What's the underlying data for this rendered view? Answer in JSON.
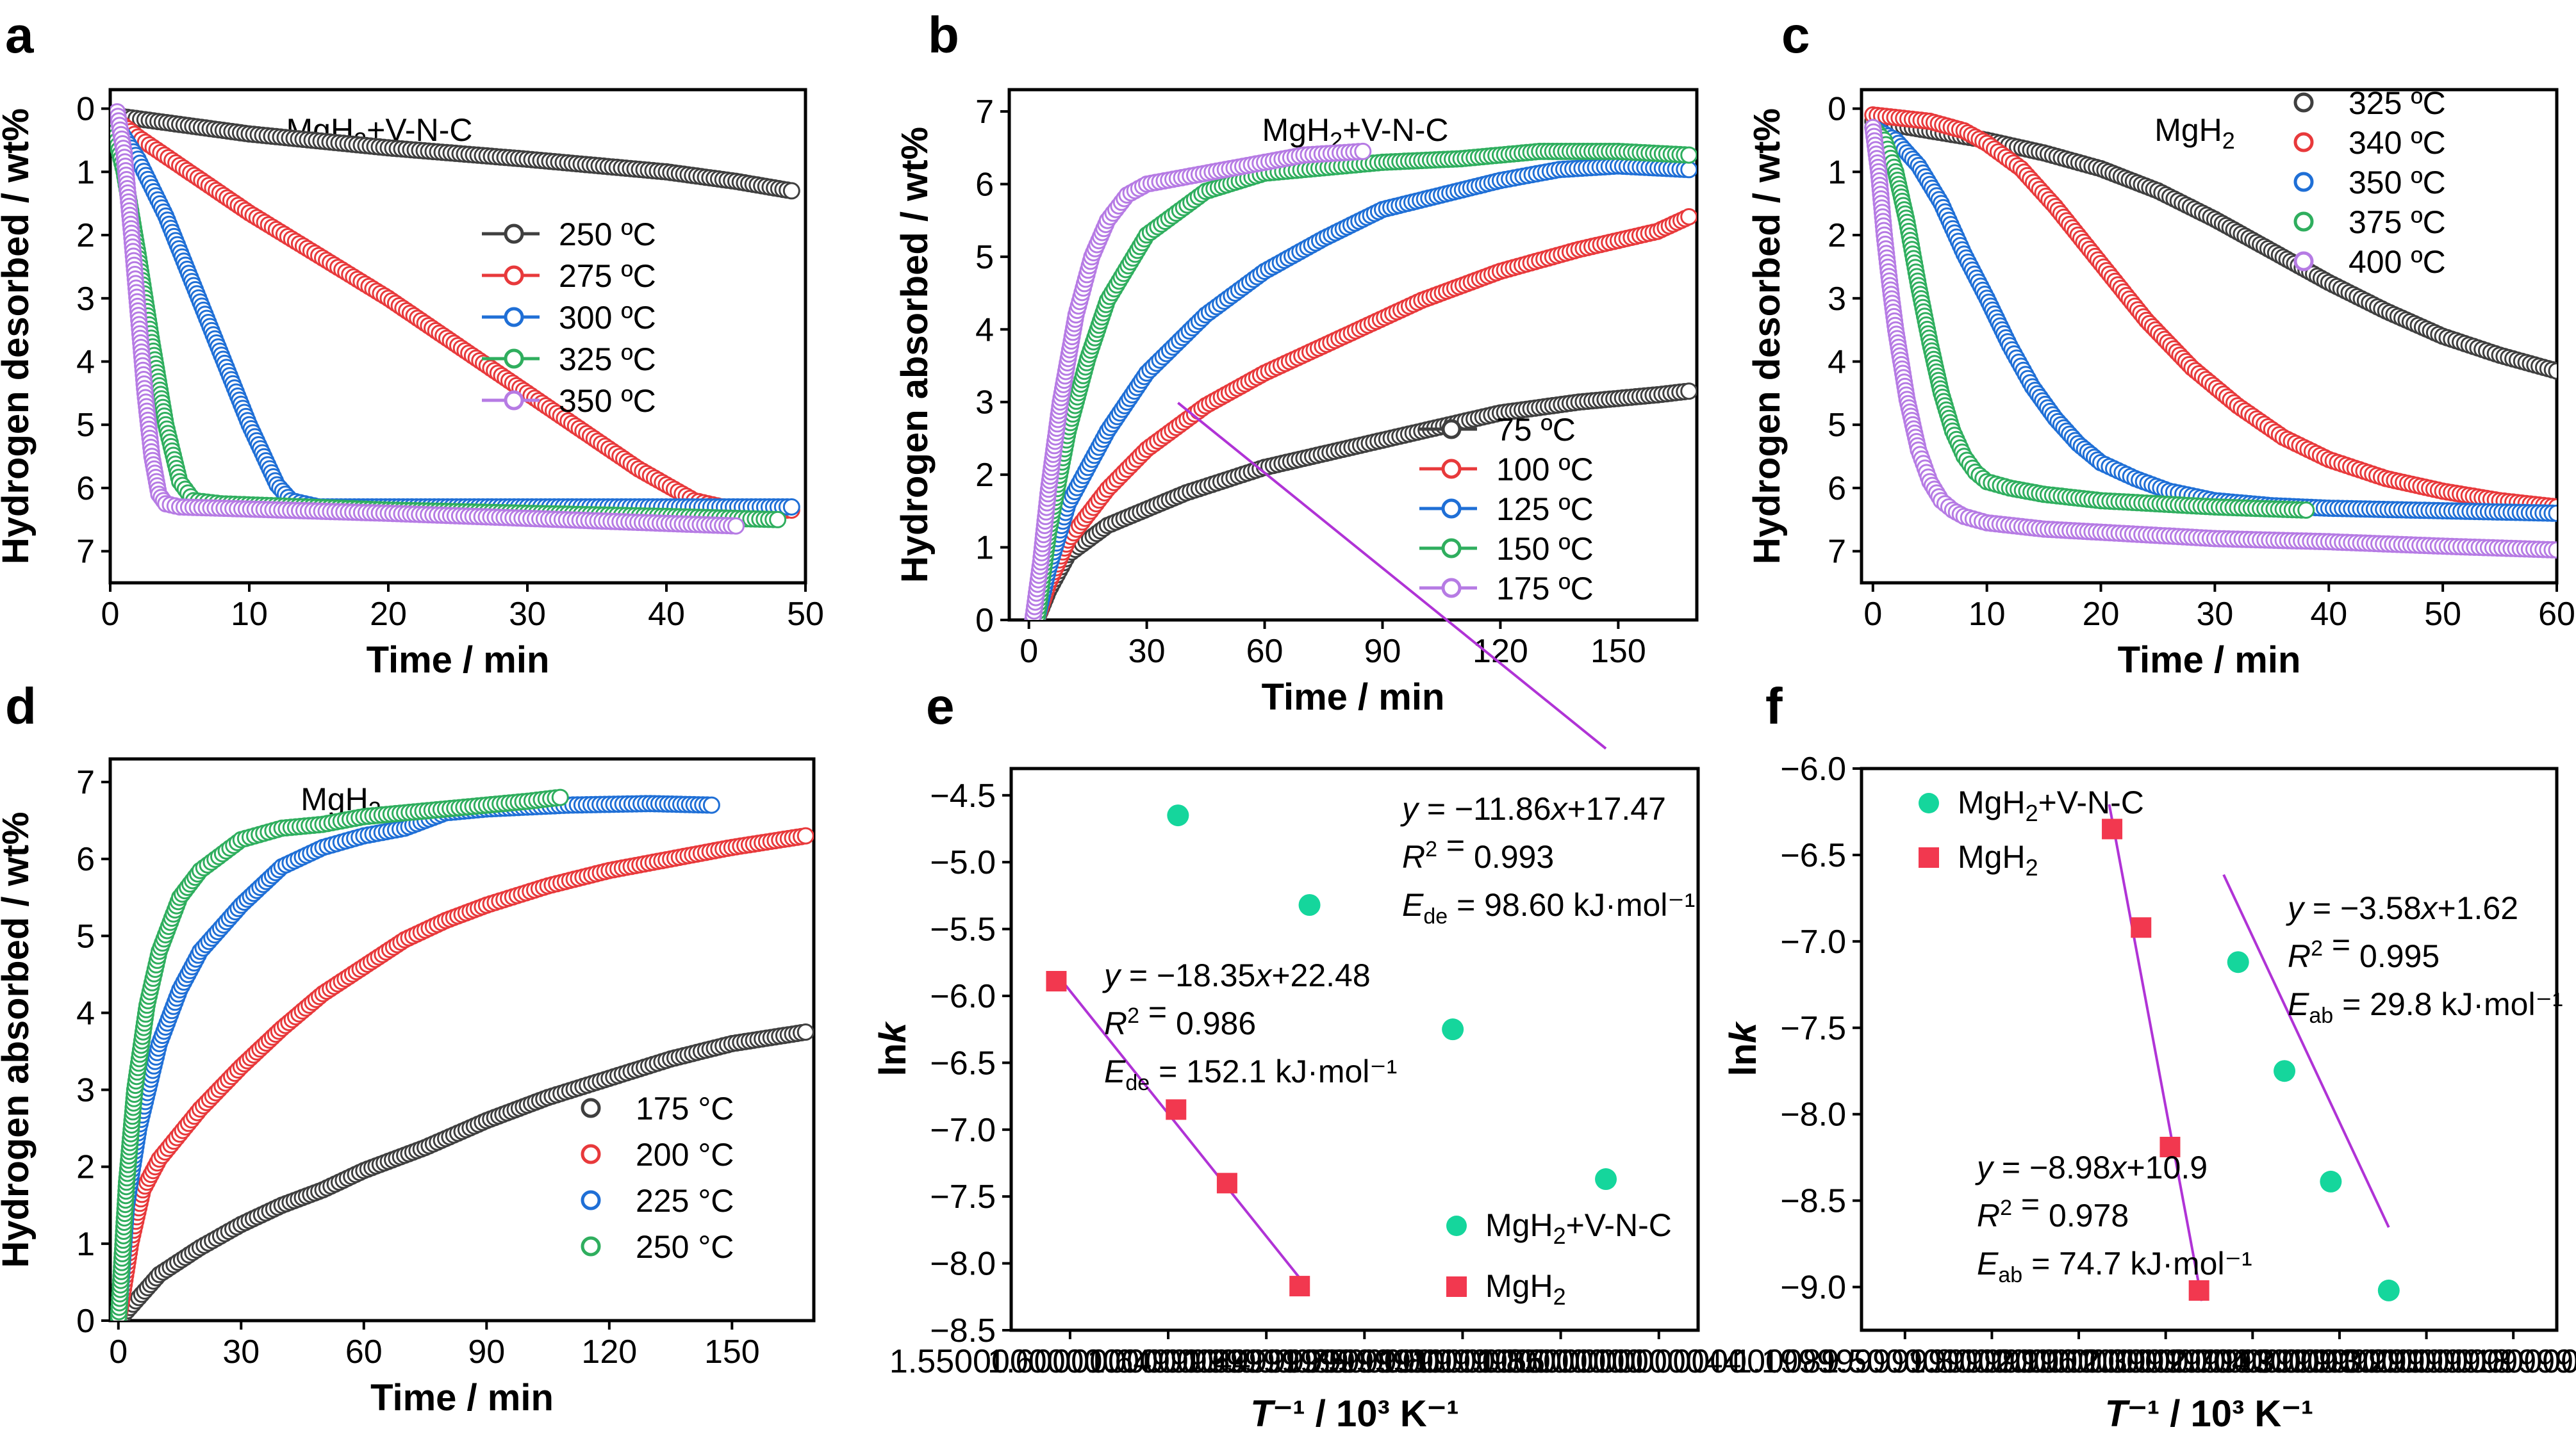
{
  "colors": {
    "black": "#3f3f3f",
    "red": "#e8393b",
    "blue": "#1f6fd6",
    "green": "#2fae5e",
    "purple": "#b67be4",
    "teal": "#15d69c",
    "salmon": "#f2384f",
    "fit": "#b033d6"
  },
  "chart_data": [
    {
      "id": "a",
      "panel_label": "a",
      "type": "line",
      "title": "MgH2+V-N-C",
      "xlabel": "Time / min",
      "ylabel": "Hydrogen desorbed / wt%",
      "xlim": [
        0,
        50
      ],
      "ylim": [
        7.5,
        -0.3
      ],
      "y_reversed": true,
      "xticks": [
        0,
        10,
        20,
        30,
        40,
        50
      ],
      "yticks": [
        0,
        1,
        2,
        3,
        4,
        5,
        6,
        7
      ],
      "legend_position": "right",
      "series": [
        {
          "name": "250 ºC",
          "color": "#3f3f3f",
          "x": [
            0,
            5,
            10,
            20,
            30,
            40,
            45,
            49
          ],
          "y": [
            0.1,
            0.25,
            0.4,
            0.62,
            0.8,
            1.0,
            1.15,
            1.3
          ]
        },
        {
          "name": "275 ºC",
          "color": "#e8393b",
          "x": [
            0,
            2,
            5,
            10,
            20,
            30,
            38,
            42,
            44,
            48,
            49
          ],
          "y": [
            0.1,
            0.45,
            0.9,
            1.65,
            3.0,
            4.5,
            5.7,
            6.2,
            6.3,
            6.35,
            6.35
          ]
        },
        {
          "name": "300 ºC",
          "color": "#1f6fd6",
          "x": [
            0,
            2,
            4,
            6,
            8,
            10,
            12,
            13,
            15,
            30,
            49
          ],
          "y": [
            0.1,
            0.8,
            1.7,
            2.8,
            3.9,
            5.0,
            5.95,
            6.2,
            6.3,
            6.3,
            6.3
          ]
        },
        {
          "name": "325 ºC",
          "color": "#2fae5e",
          "x": [
            0,
            1,
            2,
            3,
            4,
            5,
            6,
            8,
            20,
            40,
            48
          ],
          "y": [
            0.1,
            1.0,
            2.3,
            3.7,
            5.0,
            5.9,
            6.2,
            6.25,
            6.35,
            6.45,
            6.5
          ]
        },
        {
          "name": "350 ºC",
          "color": "#b67be4",
          "x": [
            0.5,
            1,
            1.5,
            2,
            2.5,
            3,
            3.5,
            4,
            5,
            20,
            45
          ],
          "y": [
            0.05,
            0.7,
            1.9,
            3.2,
            4.5,
            5.5,
            6.1,
            6.25,
            6.3,
            6.4,
            6.6
          ]
        }
      ]
    },
    {
      "id": "b",
      "panel_label": "b",
      "type": "line",
      "title": "MgH2+V-N-C",
      "xlabel": "Time / min",
      "ylabel": "Hydrogen absorbed / wt%",
      "xlim": [
        -5,
        170
      ],
      "ylim": [
        0,
        7.3
      ],
      "xticks": [
        0,
        30,
        60,
        90,
        120,
        150
      ],
      "yticks": [
        0,
        1,
        2,
        3,
        4,
        5,
        6,
        7
      ],
      "legend_position": "bottom-right",
      "series": [
        {
          "name": "75 ºC",
          "color": "#3f3f3f",
          "x": [
            2,
            5,
            10,
            20,
            40,
            60,
            80,
            100,
            120,
            140,
            160,
            168
          ],
          "y": [
            0,
            0.4,
            0.9,
            1.3,
            1.75,
            2.1,
            2.35,
            2.6,
            2.85,
            3.0,
            3.1,
            3.15
          ]
        },
        {
          "name": "100 ºC",
          "color": "#e8393b",
          "x": [
            2,
            5,
            10,
            20,
            30,
            45,
            60,
            80,
            100,
            120,
            140,
            160,
            168
          ],
          "y": [
            0,
            0.5,
            1.1,
            1.8,
            2.35,
            2.95,
            3.4,
            3.9,
            4.4,
            4.8,
            5.1,
            5.35,
            5.55
          ]
        },
        {
          "name": "125 ºC",
          "color": "#1f6fd6",
          "x": [
            2,
            5,
            10,
            20,
            30,
            45,
            60,
            75,
            90,
            105,
            120,
            135,
            150,
            168
          ],
          "y": [
            0,
            0.7,
            1.6,
            2.6,
            3.4,
            4.2,
            4.8,
            5.25,
            5.65,
            5.85,
            6.05,
            6.2,
            6.25,
            6.2
          ]
        },
        {
          "name": "150 ºC",
          "color": "#2fae5e",
          "x": [
            2,
            5,
            10,
            15,
            20,
            30,
            45,
            60,
            90,
            110,
            130,
            150,
            168
          ],
          "y": [
            0,
            1.2,
            2.6,
            3.6,
            4.4,
            5.3,
            5.9,
            6.15,
            6.3,
            6.35,
            6.45,
            6.45,
            6.4
          ]
        },
        {
          "name": "175 ºC",
          "color": "#b67be4",
          "x": [
            1,
            3,
            5,
            8,
            12,
            16,
            20,
            25,
            30,
            40,
            50,
            60,
            70,
            85
          ],
          "y": [
            0,
            0.8,
            1.8,
            3.0,
            4.2,
            5.0,
            5.5,
            5.85,
            6.0,
            6.1,
            6.2,
            6.3,
            6.4,
            6.45
          ]
        }
      ]
    },
    {
      "id": "c",
      "panel_label": "c",
      "type": "line",
      "title": "MgH2",
      "xlabel": "Time / min",
      "ylabel": "Hydrogen desorbed / wt%",
      "xlim": [
        -1,
        60
      ],
      "ylim": [
        7.5,
        -0.3
      ],
      "y_reversed": true,
      "xticks": [
        0,
        10,
        20,
        30,
        40,
        50,
        60
      ],
      "yticks": [
        0,
        1,
        2,
        3,
        4,
        5,
        6,
        7
      ],
      "legend_position": "top-right",
      "series": [
        {
          "name": "325 ºC",
          "color": "#3f3f3f",
          "x": [
            0,
            5,
            10,
            15,
            20,
            25,
            30,
            35,
            40,
            45,
            50,
            55,
            60
          ],
          "y": [
            0.2,
            0.35,
            0.5,
            0.7,
            0.95,
            1.3,
            1.75,
            2.25,
            2.75,
            3.2,
            3.6,
            3.9,
            4.15
          ]
        },
        {
          "name": "340 ºC",
          "color": "#e8393b",
          "x": [
            0,
            5,
            8,
            10,
            13,
            16,
            20,
            24,
            28,
            32,
            36,
            40,
            45,
            50,
            55,
            60
          ],
          "y": [
            0.1,
            0.2,
            0.35,
            0.55,
            0.95,
            1.55,
            2.45,
            3.35,
            4.1,
            4.7,
            5.2,
            5.55,
            5.85,
            6.05,
            6.2,
            6.3
          ]
        },
        {
          "name": "350 ºC",
          "color": "#1f6fd6",
          "x": [
            0,
            2,
            4,
            6,
            8,
            10,
            12,
            14,
            16,
            18,
            20,
            23,
            26,
            30,
            35,
            40,
            50,
            60
          ],
          "y": [
            0.3,
            0.5,
            0.9,
            1.5,
            2.3,
            3.0,
            3.75,
            4.4,
            4.9,
            5.3,
            5.6,
            5.85,
            6.05,
            6.2,
            6.28,
            6.32,
            6.36,
            6.4
          ]
        },
        {
          "name": "375 ºC",
          "color": "#2fae5e",
          "x": [
            0,
            1,
            2,
            3,
            4,
            5,
            6,
            7,
            8,
            9,
            10,
            12,
            15,
            20,
            30,
            38
          ],
          "y": [
            0.3,
            0.5,
            1.0,
            1.8,
            2.8,
            3.7,
            4.5,
            5.1,
            5.5,
            5.75,
            5.9,
            6.0,
            6.1,
            6.2,
            6.3,
            6.35
          ]
        },
        {
          "name": "400 ºC",
          "color": "#b67be4",
          "x": [
            0,
            0.5,
            1,
            1.5,
            2,
            3,
            4,
            5,
            6,
            7,
            8,
            10,
            15,
            20,
            30,
            40,
            50,
            60
          ],
          "y": [
            0.3,
            1.0,
            2.0,
            2.8,
            3.5,
            4.6,
            5.4,
            5.9,
            6.2,
            6.35,
            6.45,
            6.55,
            6.65,
            6.7,
            6.8,
            6.85,
            6.92,
            6.98
          ]
        }
      ]
    },
    {
      "id": "d",
      "panel_label": "d",
      "type": "line",
      "title": "MgH2",
      "xlabel": "Time / min",
      "ylabel": "Hydrogen absorbed / wt%",
      "xlim": [
        -2,
        170
      ],
      "ylim": [
        0,
        7.3
      ],
      "xticks": [
        0,
        30,
        60,
        90,
        120,
        150
      ],
      "yticks": [
        0,
        1,
        2,
        3,
        4,
        5,
        6,
        7
      ],
      "legend_position": "bottom-right",
      "series": [
        {
          "name": "175 °C",
          "color": "#3f3f3f",
          "x": [
            0,
            5,
            10,
            20,
            30,
            40,
            50,
            60,
            75,
            90,
            105,
            120,
            135,
            150,
            168
          ],
          "y": [
            0,
            0.3,
            0.6,
            0.95,
            1.25,
            1.5,
            1.7,
            1.95,
            2.25,
            2.6,
            2.9,
            3.15,
            3.4,
            3.6,
            3.75
          ]
        },
        {
          "name": "200 °C",
          "color": "#e8393b",
          "x": [
            0,
            3,
            6,
            10,
            20,
            30,
            40,
            50,
            60,
            70,
            80,
            90,
            105,
            120,
            135,
            150,
            168
          ],
          "y": [
            0,
            1.0,
            1.7,
            2.1,
            2.75,
            3.3,
            3.8,
            4.25,
            4.6,
            4.95,
            5.2,
            5.4,
            5.65,
            5.85,
            6.0,
            6.15,
            6.3
          ]
        },
        {
          "name": "225 °C",
          "color": "#1f6fd6",
          "x": [
            0,
            2,
            5,
            10,
            15,
            20,
            30,
            40,
            50,
            60,
            70,
            80,
            90,
            110,
            130,
            145
          ],
          "y": [
            0,
            1.5,
            2.5,
            3.6,
            4.3,
            4.8,
            5.4,
            5.9,
            6.15,
            6.3,
            6.4,
            6.6,
            6.65,
            6.7,
            6.72,
            6.7
          ]
        },
        {
          "name": "250 °C",
          "color": "#2fae5e",
          "x": [
            0,
            2,
            4,
            7,
            10,
            15,
            20,
            30,
            40,
            50,
            60,
            70,
            80,
            90,
            100,
            108
          ],
          "y": [
            0,
            1.8,
            3.0,
            4.1,
            4.8,
            5.5,
            5.85,
            6.25,
            6.4,
            6.45,
            6.55,
            6.6,
            6.65,
            6.7,
            6.75,
            6.8
          ]
        }
      ]
    },
    {
      "id": "e",
      "panel_label": "e",
      "type": "scatter",
      "xlabel": "T⁻¹ / 10³ K⁻¹",
      "ylabel": "lnk",
      "xlim": [
        1.52,
        1.87
      ],
      "ylim": [
        -8.5,
        -4.3
      ],
      "xticks": [
        1.55,
        1.6,
        1.65,
        1.7,
        1.75,
        1.8,
        1.85
      ],
      "yticks": [
        -8.5,
        -8.0,
        -7.5,
        -7.0,
        -6.5,
        -6.0,
        -5.5,
        -5.0,
        -4.5
      ],
      "legend_position": "bottom-right",
      "series": [
        {
          "name": "MgH2+V-N-C",
          "color": "#15d69c",
          "marker": "circle",
          "x": [
            1.605,
            1.672,
            1.745,
            1.823
          ],
          "y": [
            -4.65,
            -5.32,
            -6.25,
            -7.37
          ],
          "fit": {
            "slope": -11.86,
            "intercept": 17.47,
            "x_range": [
              1.605,
              1.823
            ],
            "equation": "y = −11.86x+17.47",
            "r2": "0.993",
            "E": "98.60 kJ·mol⁻¹"
          }
        },
        {
          "name": "MgH2",
          "color": "#f2384f",
          "marker": "square",
          "x": [
            1.543,
            1.604,
            1.63,
            1.667
          ],
          "y": [
            -5.89,
            -6.85,
            -7.4,
            -8.17
          ],
          "fit": {
            "slope": -18.35,
            "intercept": 22.48,
            "x_range": [
              1.543,
              1.667
            ],
            "equation": "y = −18.35x+22.48",
            "r2": "0.986",
            "E": "152.1 kJ·mol⁻¹"
          }
        }
      ]
    },
    {
      "id": "f",
      "panel_label": "f",
      "type": "scatter",
      "xlabel": "T⁻¹ / 10³ K⁻¹",
      "ylabel": "lnk",
      "xlim": [
        1.05,
        3.45
      ],
      "ylim": [
        -9.25,
        -6.0
      ],
      "xticks": [
        1.2,
        1.5,
        1.8,
        2.1,
        2.4,
        2.7,
        3.0,
        3.3
      ],
      "yticks": [
        -9.0,
        -8.5,
        -8.0,
        -7.5,
        -7.0,
        -6.5,
        -6.0
      ],
      "legend_position": "top-left",
      "series": [
        {
          "name": "MgH2+V-N-C",
          "color": "#15d69c",
          "marker": "circle",
          "x": [
            2.35,
            2.51,
            2.67,
            2.87
          ],
          "y": [
            -7.12,
            -7.75,
            -8.39,
            -9.02
          ],
          "fit": {
            "slope": -3.58,
            "intercept": 1.62,
            "x_range": [
              2.3,
              2.87
            ],
            "equation": "y = −3.58x+1.62",
            "r2": "0.995",
            "E": "29.8 kJ·mol⁻¹"
          }
        },
        {
          "name": "MgH2",
          "color": "#f2384f",
          "marker": "square",
          "x": [
            1.915,
            2.015,
            2.115,
            2.215
          ],
          "y": [
            -6.35,
            -6.92,
            -8.19,
            -9.02
          ],
          "fit": {
            "slope": -8.98,
            "intercept": 10.9,
            "x_range": [
              1.905,
              2.225
            ],
            "equation": "y = −8.98x+10.9",
            "r2": "0.978",
            "E": "74.7 kJ·mol⁻¹"
          }
        }
      ]
    }
  ]
}
